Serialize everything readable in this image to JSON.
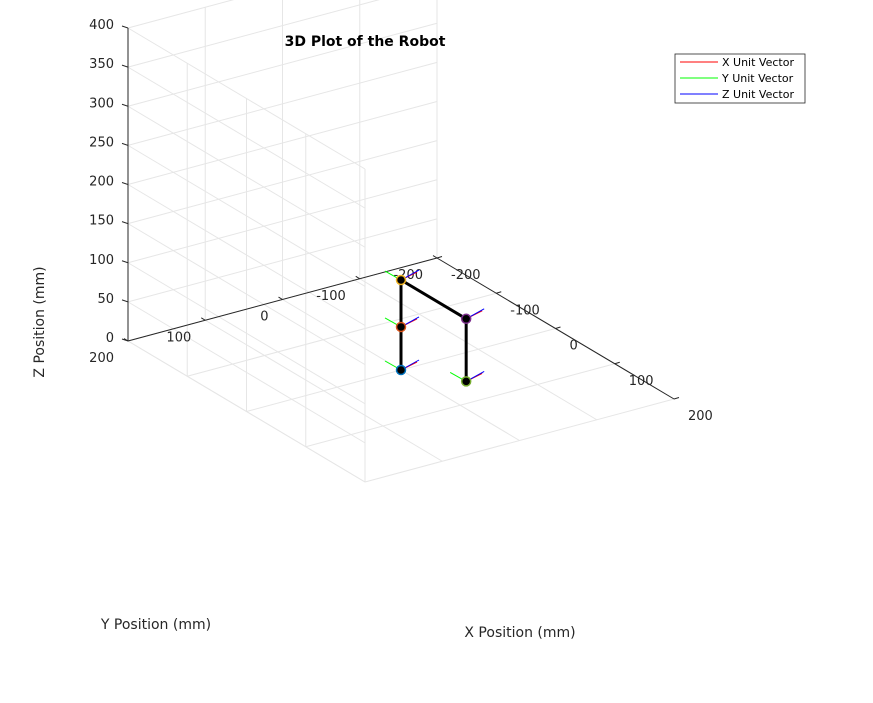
{
  "chart_data": {
    "type": "line3d",
    "title": "3D Plot of the Robot",
    "xlabel": "X Position (mm)",
    "ylabel": "Y Position (mm)",
    "zlabel": "Z Position (mm)",
    "xlim": [
      -200,
      200
    ],
    "ylim": [
      -200,
      200
    ],
    "zlim": [
      0,
      400
    ],
    "xticks": [
      -200,
      -100,
      0,
      100,
      200
    ],
    "yticks": [
      -200,
      -100,
      0,
      100,
      200
    ],
    "zticks": [
      0,
      50,
      100,
      150,
      200,
      250,
      300,
      350,
      400
    ],
    "grid": true,
    "legend_placement": "top-right",
    "legend": [
      {
        "label": "X Unit Vector",
        "color": "#ff0000"
      },
      {
        "label": "Y Unit Vector",
        "color": "#00ff00"
      },
      {
        "label": "Z Unit Vector",
        "color": "#0000ff"
      }
    ],
    "link_color": "#000000",
    "joints": [
      {
        "x": 0,
        "y": 0,
        "z": 0
      },
      {
        "x": 0,
        "y": 0,
        "z": 55
      },
      {
        "x": 0,
        "y": 0,
        "z": 115
      },
      {
        "x": 110,
        "y": 0,
        "z": 115
      },
      {
        "x": 110,
        "y": 0,
        "z": 35
      }
    ],
    "joint_marker_color": "#000000",
    "joint_edge_colors": [
      "#0072bd",
      "#d95319",
      "#edb120",
      "#7e2f8e",
      "#77ac30"
    ]
  }
}
